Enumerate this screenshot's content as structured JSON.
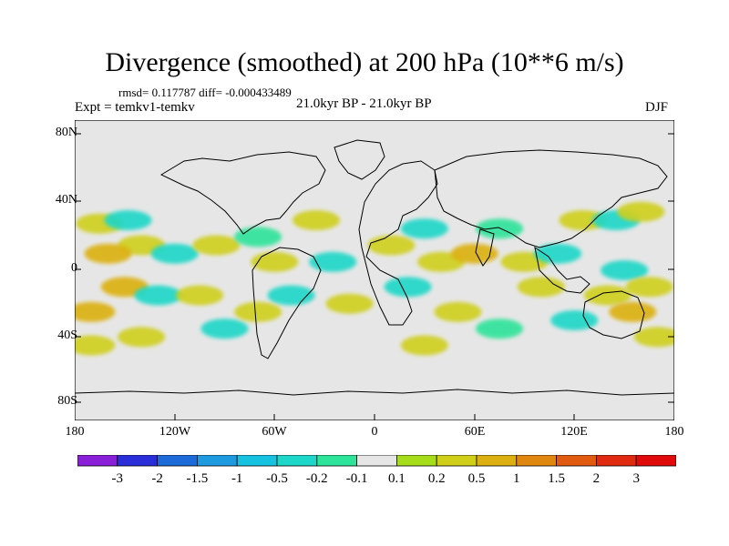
{
  "title": "Divergence (smoothed) at 200 hPa (10**6 m/s)",
  "stats_text": "rmsd= 0.117787 diff= -0.000433489",
  "expt_text": "Expt = temkv1-temkv",
  "period_text": "21.0kyr BP - 21.0kyr BP",
  "season": "DJF",
  "y_axis_labels": [
    "80N",
    "40N",
    "0",
    "40S",
    "80S"
  ],
  "x_axis_labels": [
    "180",
    "120W",
    "60W",
    "0",
    "60E",
    "120E",
    "180"
  ],
  "colorbar": {
    "labels": [
      "-3",
      "-2",
      "-1.5",
      "-1",
      "-0.5",
      "-0.2",
      "-0.1",
      "0.1",
      "0.2",
      "0.5",
      "1",
      "1.5",
      "2",
      "3"
    ],
    "colors": [
      "#8a1fd8",
      "#2a2ed8",
      "#1c6ad8",
      "#1e9be0",
      "#15c2e0",
      "#1dd7c8",
      "#2ee39a",
      "#e6e6e6",
      "#a6dd1a",
      "#cfcf1a",
      "#dcb011",
      "#e0870f",
      "#e05a0f",
      "#e02a10",
      "#e00a0a"
    ]
  },
  "chart_data": {
    "type": "heatmap",
    "title": "Divergence (smoothed) at 200 hPa (10**6 m/s)",
    "variable": "Divergence (smoothed)",
    "level": "200 hPa",
    "units": "10**6 m/s",
    "season": "DJF",
    "rmsd": 0.117787,
    "diff": -0.000433489,
    "xlim": [
      -180,
      180
    ],
    "ylim": [
      -90,
      90
    ],
    "contour_levels": [
      -3,
      -2,
      -1.5,
      -1,
      -0.5,
      -0.2,
      -0.1,
      0.1,
      0.2,
      0.5,
      1,
      1.5,
      2,
      3
    ],
    "blobs": [
      {
        "lon": -165,
        "lat": 28,
        "value": 0.35
      },
      {
        "lon": -148,
        "lat": 30,
        "value": -0.25
      },
      {
        "lon": -140,
        "lat": 15,
        "value": 0.45
      },
      {
        "lon": -160,
        "lat": 10,
        "value": 0.5
      },
      {
        "lon": -120,
        "lat": 10,
        "value": -0.25
      },
      {
        "lon": -95,
        "lat": 15,
        "value": 0.25
      },
      {
        "lon": -70,
        "lat": 20,
        "value": -0.2
      },
      {
        "lon": -60,
        "lat": 5,
        "value": 0.3
      },
      {
        "lon": -35,
        "lat": 30,
        "value": 0.4
      },
      {
        "lon": -25,
        "lat": 5,
        "value": -0.3
      },
      {
        "lon": -50,
        "lat": -15,
        "value": -0.25
      },
      {
        "lon": -15,
        "lat": -20,
        "value": 0.3
      },
      {
        "lon": -150,
        "lat": -10,
        "value": 0.6
      },
      {
        "lon": -130,
        "lat": -15,
        "value": -0.3
      },
      {
        "lon": -170,
        "lat": -25,
        "value": 0.5
      },
      {
        "lon": -105,
        "lat": -15,
        "value": 0.35
      },
      {
        "lon": -90,
        "lat": -35,
        "value": -0.25
      },
      {
        "lon": -170,
        "lat": -45,
        "value": 0.3
      },
      {
        "lon": -140,
        "lat": -40,
        "value": 0.25
      },
      {
        "lon": -70,
        "lat": -25,
        "value": 0.3
      },
      {
        "lon": 10,
        "lat": 15,
        "value": 0.3
      },
      {
        "lon": 30,
        "lat": 25,
        "value": -0.25
      },
      {
        "lon": 40,
        "lat": 5,
        "value": 0.35
      },
      {
        "lon": 60,
        "lat": 10,
        "value": 0.5
      },
      {
        "lon": 75,
        "lat": 25,
        "value": -0.2
      },
      {
        "lon": 90,
        "lat": 5,
        "value": 0.3
      },
      {
        "lon": 110,
        "lat": 10,
        "value": -0.25
      },
      {
        "lon": 100,
        "lat": -10,
        "value": 0.35
      },
      {
        "lon": 20,
        "lat": -10,
        "value": -0.3
      },
      {
        "lon": 50,
        "lat": -25,
        "value": 0.3
      },
      {
        "lon": 30,
        "lat": -45,
        "value": 0.25
      },
      {
        "lon": 75,
        "lat": -35,
        "value": -0.2
      },
      {
        "lon": 125,
        "lat": 30,
        "value": 0.3
      },
      {
        "lon": 145,
        "lat": 30,
        "value": -0.25
      },
      {
        "lon": 160,
        "lat": 35,
        "value": 0.35
      },
      {
        "lon": 150,
        "lat": 0,
        "value": -0.3
      },
      {
        "lon": 140,
        "lat": -15,
        "value": 0.3
      },
      {
        "lon": 155,
        "lat": -25,
        "value": 0.5
      },
      {
        "lon": 165,
        "lat": -10,
        "value": 0.25
      },
      {
        "lon": 120,
        "lat": -30,
        "value": -0.25
      },
      {
        "lon": 170,
        "lat": -40,
        "value": 0.3
      }
    ]
  }
}
